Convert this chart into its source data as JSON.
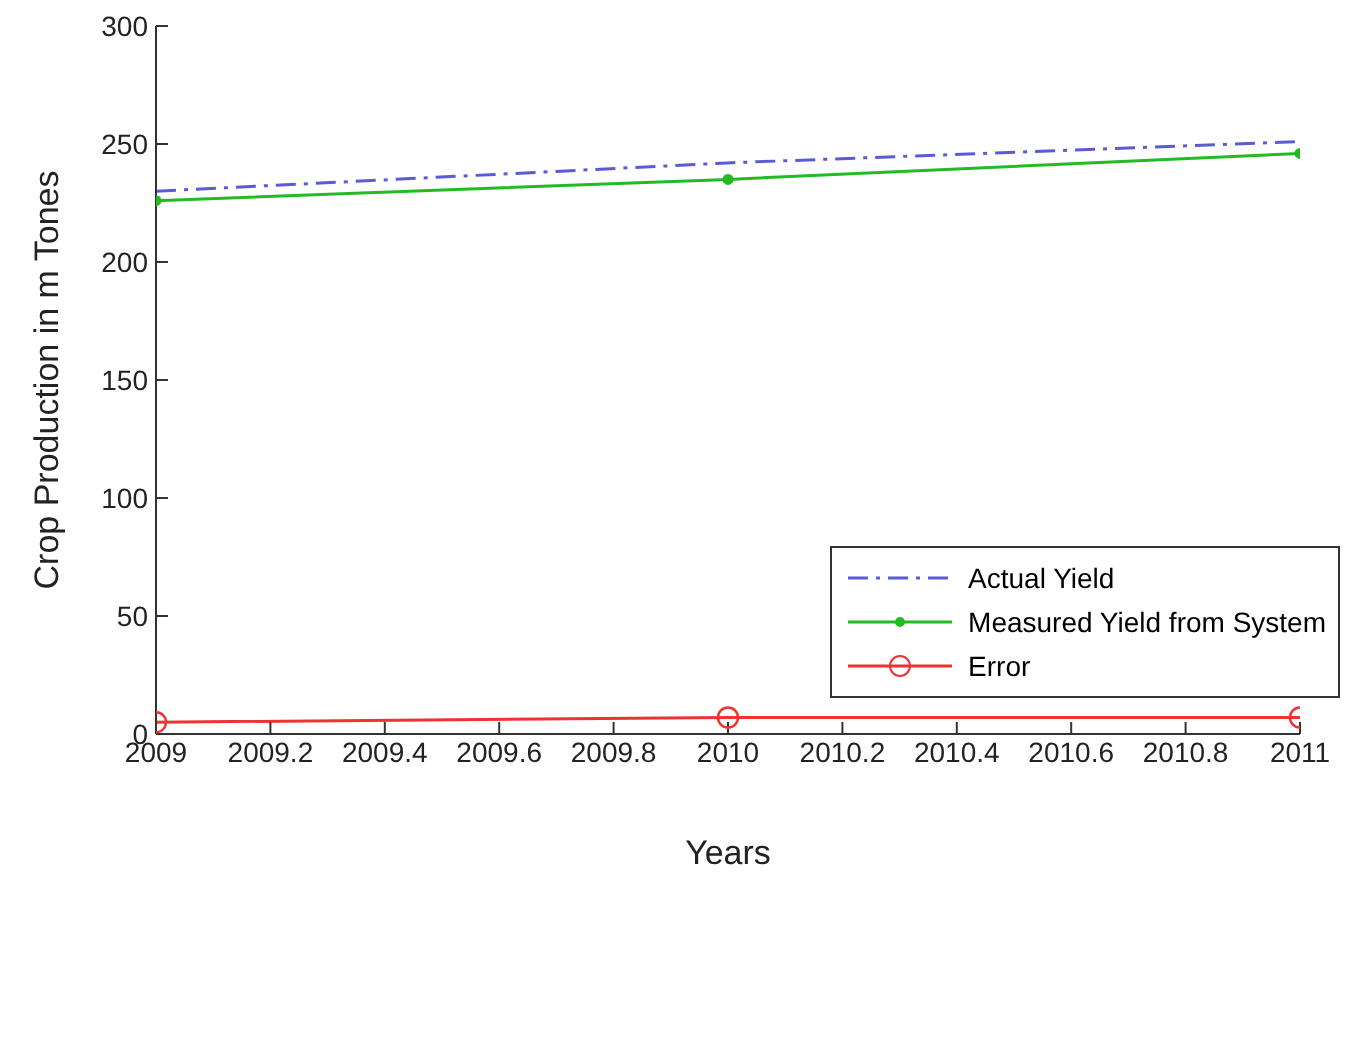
{
  "chart_data": {
    "type": "line",
    "xlabel": "Years",
    "ylabel": "Crop Production in m Tones",
    "x": [
      2009,
      2010,
      2011
    ],
    "series": [
      {
        "name": "Actual Yield",
        "color": "#5b5bd6",
        "values": [
          230,
          242,
          251
        ],
        "line_style": "dashed",
        "marker": "none"
      },
      {
        "name": "Measured Yield from System",
        "color": "#22bb22",
        "values": [
          226,
          235,
          246
        ],
        "line_style": "solid",
        "marker": "circle"
      },
      {
        "name": "Error",
        "color": "#ee3333",
        "values": [
          5,
          7,
          7
        ],
        "line_style": "solid",
        "marker": "circle"
      }
    ],
    "xlim": [
      2009,
      2011
    ],
    "xticks": [
      2009,
      2009.2,
      2009.4,
      2009.6,
      2009.8,
      2010,
      2010.2,
      2010.4,
      2010.6,
      2010.8,
      2011
    ],
    "ylim": [
      0,
      300
    ],
    "yticks": [
      0,
      50,
      100,
      150,
      200,
      250,
      300
    ],
    "grid": false,
    "legend": "right"
  }
}
